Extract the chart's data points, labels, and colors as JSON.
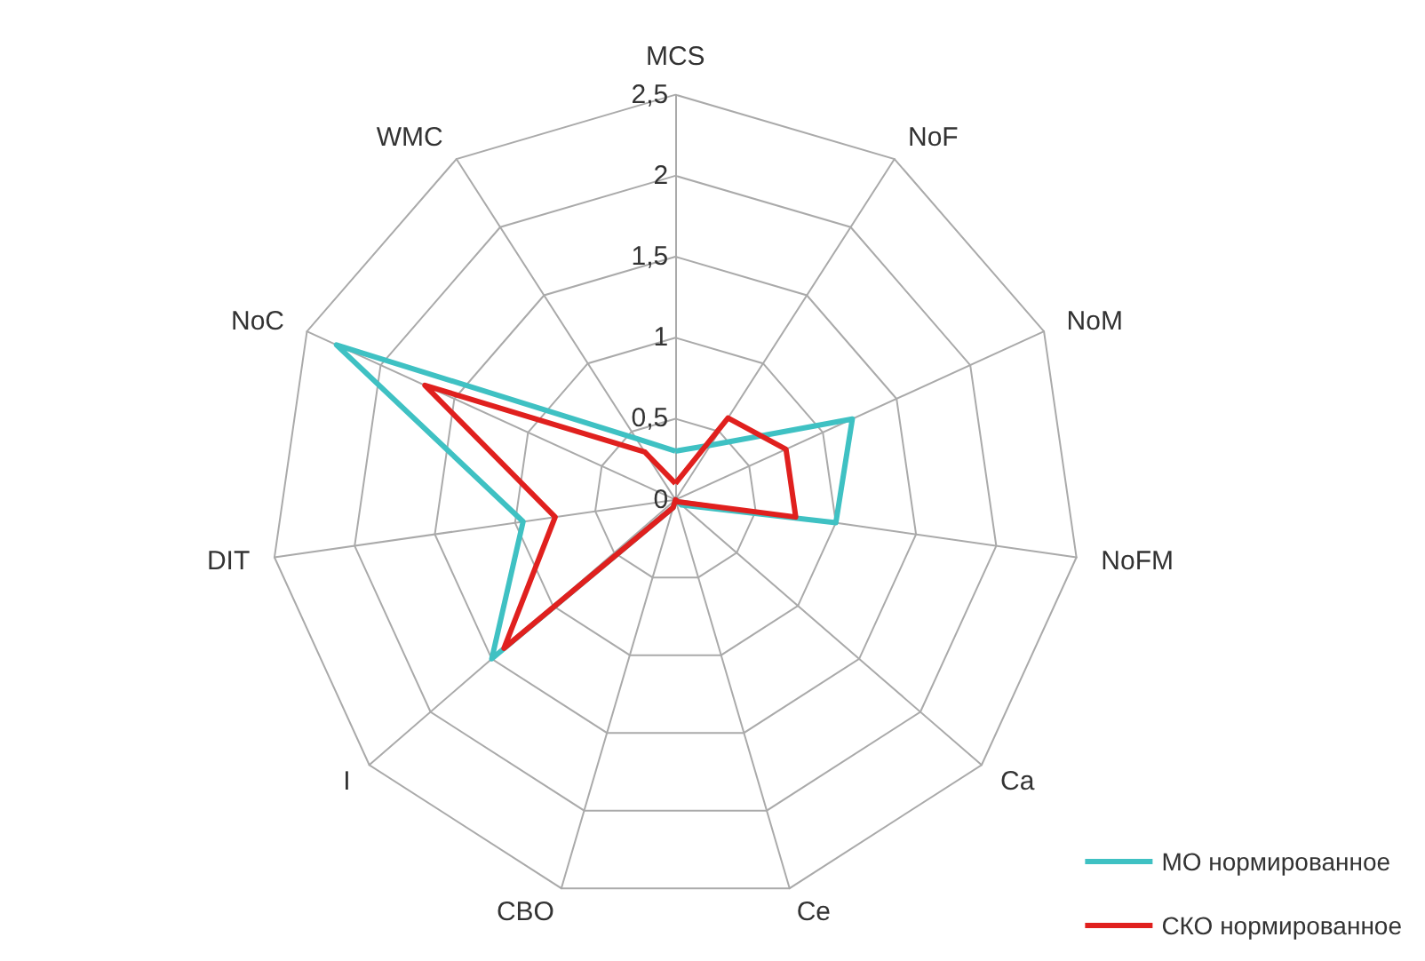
{
  "chart_data": {
    "type": "radar",
    "categories": [
      "MCS",
      "NoF",
      "NoM",
      "NoFM",
      "Ca",
      "Ce",
      "CBO",
      "I",
      "DIT",
      "NoC",
      "WMC"
    ],
    "series": [
      {
        "name": "МО нормированное",
        "color": "#3fc1c3",
        "values": [
          0.3,
          0.4,
          1.2,
          1.0,
          0.05,
          0,
          0.05,
          1.5,
          0.95,
          2.3,
          0.45
        ]
      },
      {
        "name": "СКО нормированное",
        "color": "#e0201e",
        "values": [
          0.1,
          0.6,
          0.75,
          0.75,
          0.02,
          0,
          0.05,
          1.4,
          0.75,
          1.7,
          0.35
        ]
      }
    ],
    "ylim": [
      0,
      2.5
    ],
    "yticks": [
      0,
      {
        "value": 0.5,
        "label": "0,5"
      },
      1,
      {
        "value": 1.5,
        "label": "1,5"
      },
      2,
      {
        "value": 2.5,
        "label": "2,5"
      }
    ],
    "grid": true,
    "legend": "bottom right"
  }
}
